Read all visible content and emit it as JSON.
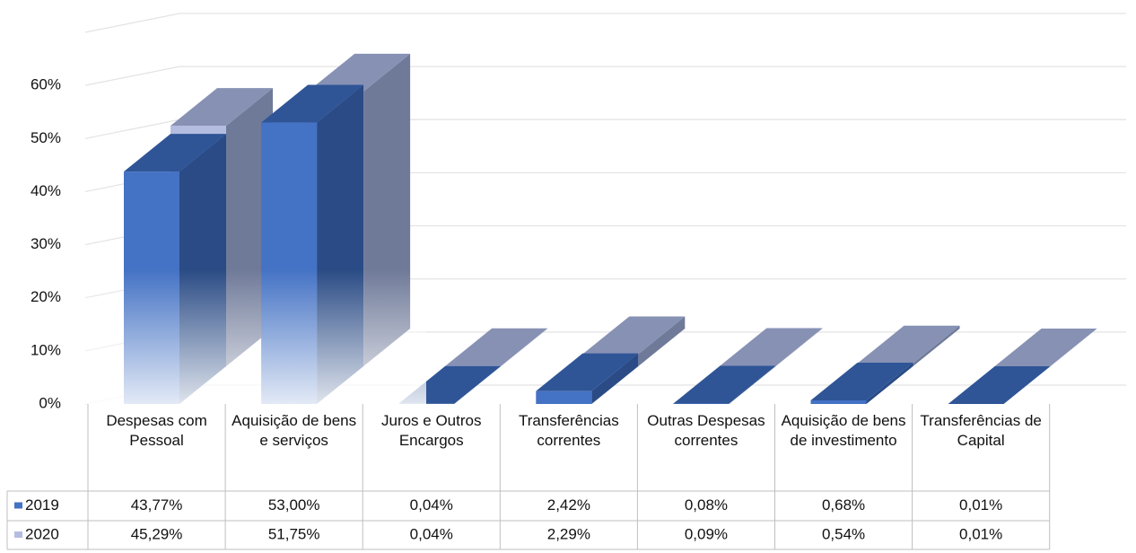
{
  "chart_data": {
    "type": "bar3d",
    "categories": [
      "Despesas com Pessoal",
      "Aquisição de bens e serviços",
      "Juros e Outros Encargos",
      "Transferências correntes",
      "Outras Despesas correntes",
      "Aquisição de bens de investimento",
      "Transferências de Capital"
    ],
    "series": [
      {
        "name": "2019",
        "color": "#4472c4",
        "values": [
          43.77,
          53.0,
          0.04,
          2.42,
          0.08,
          0.68,
          0.01
        ],
        "value_labels": [
          "43,77%",
          "53,00%",
          "0,04%",
          "2,42%",
          "0,08%",
          "0,68%",
          "0,01%"
        ]
      },
      {
        "name": "2020",
        "color": "#b4bde0",
        "values": [
          45.29,
          51.75,
          0.04,
          2.29,
          0.09,
          0.54,
          0.01
        ],
        "value_labels": [
          "45,29%",
          "51,75%",
          "0,04%",
          "2,29%",
          "0,09%",
          "0,54%",
          "0,01%"
        ]
      }
    ],
    "ylim": [
      0,
      70
    ],
    "yticks": [
      {
        "value": 0,
        "label": "0%"
      },
      {
        "value": 10,
        "label": "10%"
      },
      {
        "value": 20,
        "label": "20%"
      },
      {
        "value": 30,
        "label": "30%"
      },
      {
        "value": 40,
        "label": "40%"
      },
      {
        "value": 50,
        "label": "50%"
      },
      {
        "value": 60,
        "label": "60%"
      }
    ],
    "grid": true
  }
}
